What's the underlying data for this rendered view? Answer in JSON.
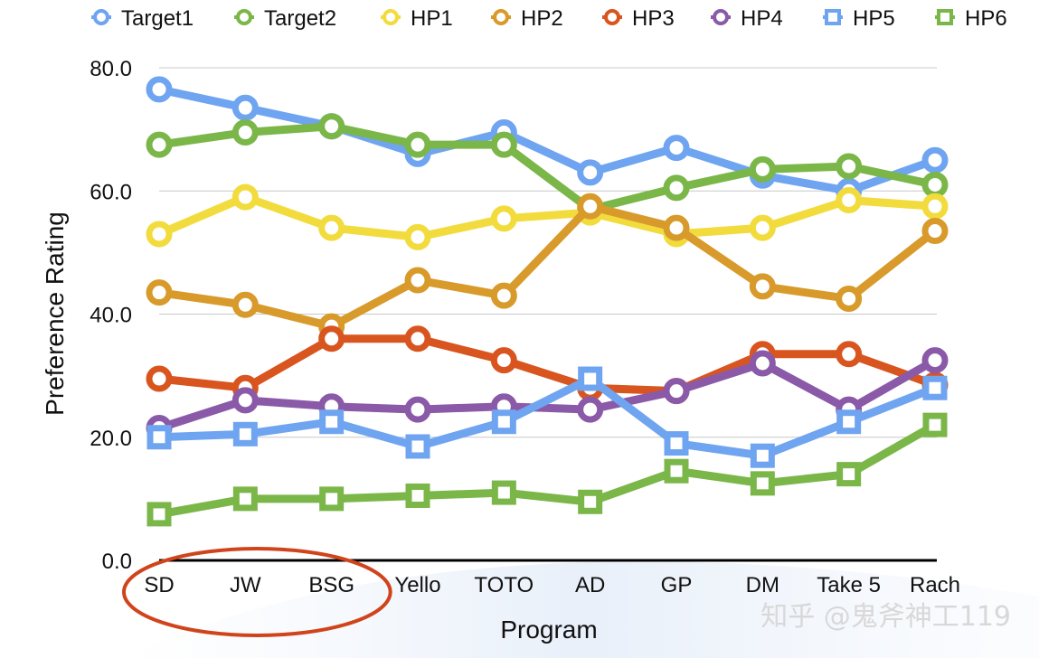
{
  "chart_data": {
    "type": "line",
    "title": "",
    "xlabel": "Program",
    "ylabel": "Preference Rating",
    "ylim": [
      0,
      80
    ],
    "yticks": [
      "0.0",
      "20.0",
      "40.0",
      "60.0",
      "80.0"
    ],
    "grid": true,
    "legend_position": "top",
    "categories": [
      "SD",
      "JW",
      "BSG",
      "Yello",
      "TOTO",
      "AD",
      "GP",
      "DM",
      "Take 5",
      "Rach"
    ],
    "highlighted_categories": [
      "SD",
      "JW",
      "BSG"
    ],
    "highlight_color": "#d0441c",
    "series": [
      {
        "name": "Target1",
        "marker": "circle",
        "color": "#6fa4f0",
        "values": [
          76.5,
          73.5,
          70.5,
          66.0,
          69.5,
          63.0,
          67.0,
          62.5,
          60.0,
          65.0
        ]
      },
      {
        "name": "Target2",
        "marker": "circle",
        "color": "#7ab648",
        "values": [
          67.5,
          69.5,
          70.5,
          67.5,
          67.5,
          57.0,
          60.5,
          63.5,
          64.0,
          61.0
        ]
      },
      {
        "name": "HP1",
        "marker": "circle",
        "color": "#f2dc3d",
        "values": [
          53.0,
          59.0,
          54.0,
          52.5,
          55.5,
          56.5,
          53.0,
          54.0,
          58.5,
          57.5
        ]
      },
      {
        "name": "HP2",
        "marker": "circle",
        "color": "#d89a2a",
        "values": [
          43.5,
          41.5,
          38.0,
          45.5,
          43.0,
          57.5,
          54.0,
          44.5,
          42.5,
          53.5
        ]
      },
      {
        "name": "HP3",
        "marker": "circle",
        "color": "#d9551f",
        "values": [
          29.5,
          28.0,
          36.0,
          36.0,
          32.5,
          28.0,
          27.5,
          33.5,
          33.5,
          28.5
        ]
      },
      {
        "name": "HP4",
        "marker": "circle",
        "color": "#8a5aa8",
        "values": [
          21.5,
          26.0,
          25.0,
          24.5,
          25.0,
          24.5,
          27.5,
          32.0,
          24.5,
          32.5
        ]
      },
      {
        "name": "HP5",
        "marker": "square",
        "color": "#6fa4f0",
        "values": [
          20.0,
          20.5,
          22.5,
          18.5,
          22.5,
          29.5,
          19.0,
          17.0,
          22.5,
          28.0
        ]
      },
      {
        "name": "HP6",
        "marker": "square",
        "color": "#7ab648",
        "values": [
          7.5,
          10.0,
          10.0,
          10.5,
          11.0,
          9.5,
          14.5,
          12.5,
          14.0,
          22.0
        ]
      }
    ]
  },
  "watermark": "知乎 @鬼斧神工119"
}
